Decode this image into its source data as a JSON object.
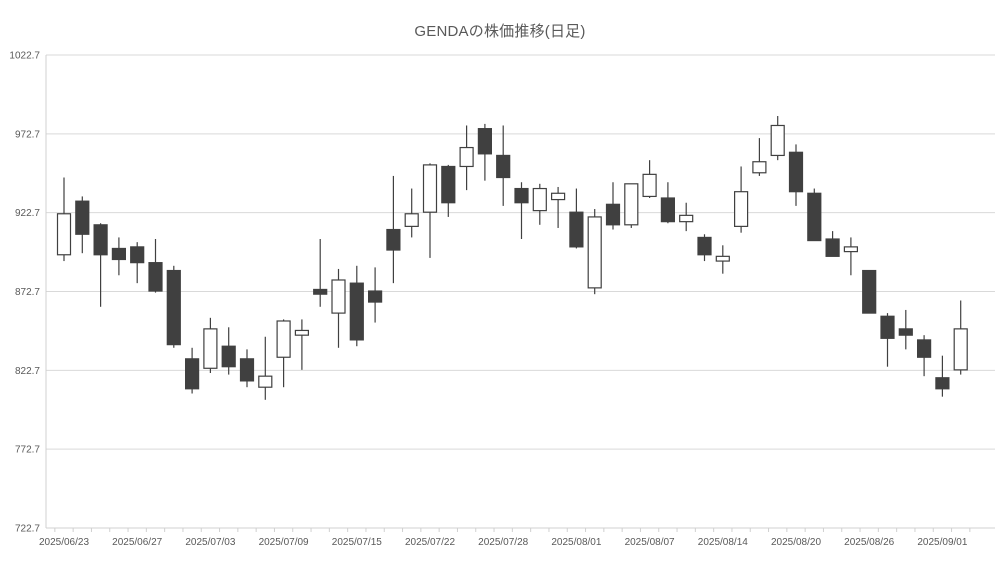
{
  "chart": {
    "title": "GENDAの株価推移(日足)"
  },
  "chart_data": {
    "type": "candlestick",
    "title": "GENDAの株価推移(日足)",
    "ylim": [
      722.7,
      1022.7
    ],
    "y_tick_values": [
      722.7,
      772.7,
      822.7,
      872.7,
      922.7,
      972.7,
      1022.7
    ],
    "y_tick_labels": [
      "722.7",
      "772.7",
      "822.7",
      "872.7",
      "922.7",
      "972.7",
      "1022.7"
    ],
    "x_tick_labels": [
      "2025/06/23",
      "2025/06/27",
      "2025/07/03",
      "2025/07/09",
      "2025/07/15",
      "2025/07/22",
      "2025/07/28",
      "2025/08/01",
      "2025/08/07",
      "2025/08/14",
      "2025/08/20",
      "2025/08/26",
      "2025/09/01"
    ],
    "x_label_every_n_candles": 4,
    "grid": "horizontal-only",
    "legend": "none",
    "colors": {
      "up_fill": "#ffffff",
      "up_stroke": "#404040",
      "down_fill": "#404040",
      "down_stroke": "#404040",
      "wick": "#404040",
      "gridline": "#d9d9d9",
      "axis_line": "#d0d0d0",
      "text": "#595959"
    },
    "candles": [
      {
        "date": "2025/06/23",
        "open": 896,
        "high": 945,
        "low": 892,
        "close": 922
      },
      {
        "date": "2025/06/24",
        "open": 930,
        "high": 933,
        "low": 897,
        "close": 909
      },
      {
        "date": "2025/06/25",
        "open": 915,
        "high": 916,
        "low": 863,
        "close": 896
      },
      {
        "date": "2025/06/26",
        "open": 900,
        "high": 907,
        "low": 883,
        "close": 893
      },
      {
        "date": "2025/06/27",
        "open": 901,
        "high": 904,
        "low": 878,
        "close": 891
      },
      {
        "date": "2025/06/30",
        "open": 891,
        "high": 906,
        "low": 872,
        "close": 873
      },
      {
        "date": "2025/07/01",
        "open": 886,
        "high": 889,
        "low": 837,
        "close": 839
      },
      {
        "date": "2025/07/02",
        "open": 830,
        "high": 837,
        "low": 808,
        "close": 811
      },
      {
        "date": "2025/07/03",
        "open": 824,
        "high": 856,
        "low": 821,
        "close": 849
      },
      {
        "date": "2025/07/04",
        "open": 838,
        "high": 850,
        "low": 820,
        "close": 825
      },
      {
        "date": "2025/07/07",
        "open": 830,
        "high": 836,
        "low": 812,
        "close": 816
      },
      {
        "date": "2025/07/08",
        "open": 812,
        "high": 844,
        "low": 804,
        "close": 819
      },
      {
        "date": "2025/07/09",
        "open": 831,
        "high": 855,
        "low": 812,
        "close": 854
      },
      {
        "date": "2025/07/10",
        "open": 845,
        "high": 855,
        "low": 823,
        "close": 848
      },
      {
        "date": "2025/07/11",
        "open": 874,
        "high": 906,
        "low": 863,
        "close": 871
      },
      {
        "date": "2025/07/14",
        "open": 859,
        "high": 887,
        "low": 837,
        "close": 880
      },
      {
        "date": "2025/07/15",
        "open": 878,
        "high": 889,
        "low": 838,
        "close": 842
      },
      {
        "date": "2025/07/16",
        "open": 873,
        "high": 888,
        "low": 853,
        "close": 866
      },
      {
        "date": "2025/07/17",
        "open": 912,
        "high": 946,
        "low": 878,
        "close": 899
      },
      {
        "date": "2025/07/18",
        "open": 914,
        "high": 938,
        "low": 907,
        "close": 922
      },
      {
        "date": "2025/07/22",
        "open": 923,
        "high": 954,
        "low": 894,
        "close": 953
      },
      {
        "date": "2025/07/23",
        "open": 952,
        "high": 953,
        "low": 920,
        "close": 929
      },
      {
        "date": "2025/07/24",
        "open": 952,
        "high": 978,
        "low": 937,
        "close": 964
      },
      {
        "date": "2025/07/25",
        "open": 976,
        "high": 979,
        "low": 943,
        "close": 960
      },
      {
        "date": "2025/07/28",
        "open": 959,
        "high": 978,
        "low": 927,
        "close": 945
      },
      {
        "date": "2025/07/29",
        "open": 938,
        "high": 942,
        "low": 906,
        "close": 929
      },
      {
        "date": "2025/07/30",
        "open": 924,
        "high": 941,
        "low": 915,
        "close": 938
      },
      {
        "date": "2025/07/31",
        "open": 931,
        "high": 939,
        "low": 913,
        "close": 935
      },
      {
        "date": "2025/08/01",
        "open": 923,
        "high": 938,
        "low": 900,
        "close": 901
      },
      {
        "date": "2025/08/04",
        "open": 875,
        "high": 925,
        "low": 871,
        "close": 920
      },
      {
        "date": "2025/08/05",
        "open": 928,
        "high": 942,
        "low": 912,
        "close": 915
      },
      {
        "date": "2025/08/06",
        "open": 915,
        "high": 941,
        "low": 913,
        "close": 941
      },
      {
        "date": "2025/08/07",
        "open": 933,
        "high": 956,
        "low": 932,
        "close": 947
      },
      {
        "date": "2025/08/08",
        "open": 932,
        "high": 942,
        "low": 916,
        "close": 917
      },
      {
        "date": "2025/08/12",
        "open": 917,
        "high": 929,
        "low": 911,
        "close": 921
      },
      {
        "date": "2025/08/13",
        "open": 907,
        "high": 909,
        "low": 892,
        "close": 896
      },
      {
        "date": "2025/08/14",
        "open": 892,
        "high": 902,
        "low": 884,
        "close": 895
      },
      {
        "date": "2025/08/15",
        "open": 914,
        "high": 952,
        "low": 910,
        "close": 936
      },
      {
        "date": "2025/08/18",
        "open": 948,
        "high": 970,
        "low": 946,
        "close": 955
      },
      {
        "date": "2025/08/19",
        "open": 959,
        "high": 984,
        "low": 956,
        "close": 978
      },
      {
        "date": "2025/08/20",
        "open": 961,
        "high": 966,
        "low": 927,
        "close": 936
      },
      {
        "date": "2025/08/21",
        "open": 935,
        "high": 938,
        "low": 905,
        "close": 905
      },
      {
        "date": "2025/08/22",
        "open": 906,
        "high": 911,
        "low": 895,
        "close": 895
      },
      {
        "date": "2025/08/25",
        "open": 898,
        "high": 907,
        "low": 883,
        "close": 901
      },
      {
        "date": "2025/08/26",
        "open": 886,
        "high": 886,
        "low": 859,
        "close": 859
      },
      {
        "date": "2025/08/27",
        "open": 857,
        "high": 859,
        "low": 825,
        "close": 843
      },
      {
        "date": "2025/08/28",
        "open": 849,
        "high": 861,
        "low": 836,
        "close": 845
      },
      {
        "date": "2025/08/29",
        "open": 842,
        "high": 845,
        "low": 819,
        "close": 831
      },
      {
        "date": "2025/09/01",
        "open": 818,
        "high": 832,
        "low": 806,
        "close": 811
      },
      {
        "date": "2025/09/02",
        "open": 823,
        "high": 867,
        "low": 820,
        "close": 849
      }
    ]
  }
}
